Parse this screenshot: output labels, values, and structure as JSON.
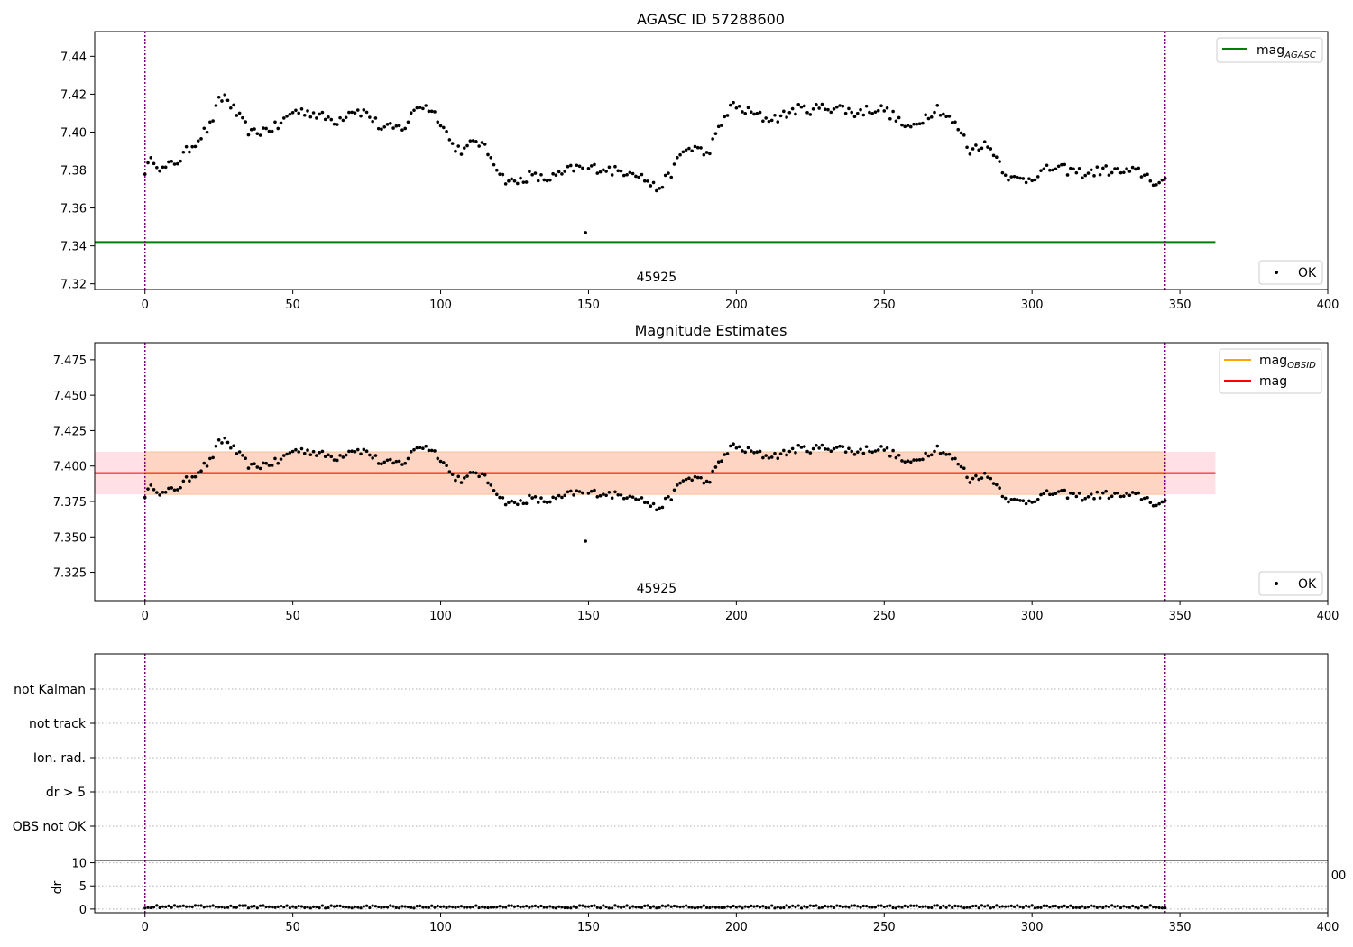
{
  "chart_data": [
    {
      "type": "scatter",
      "title": "AGASC ID 57288600",
      "xlim": [
        -17,
        400
      ],
      "ylim": [
        7.317,
        7.453
      ],
      "x_ticks": [
        0,
        50,
        100,
        150,
        200,
        250,
        300,
        350,
        400
      ],
      "y_ticks": [
        7.32,
        7.34,
        7.36,
        7.38,
        7.4,
        7.42,
        7.44
      ],
      "y_tick_labels": [
        "7.32",
        "7.34",
        "7.36",
        "7.38",
        "7.40",
        "7.42",
        "7.44"
      ],
      "y_decimals": 2,
      "obsid_label": "45925",
      "obsid_bounds": [
        0,
        345
      ],
      "lines": [
        {
          "name": "mag",
          "sub": "AGASC",
          "value": 7.342,
          "x_range": [
            -17,
            362
          ],
          "color": "#008000"
        }
      ],
      "series_name": "OK",
      "band": null,
      "legend_top": "top-right",
      "legend_bottom": "bottom-right"
    },
    {
      "type": "scatter",
      "title": "Magnitude Estimates",
      "xlim": [
        -17,
        400
      ],
      "ylim": [
        7.305,
        7.487
      ],
      "x_ticks": [
        0,
        50,
        100,
        150,
        200,
        250,
        300,
        350,
        400
      ],
      "y_ticks": [
        7.325,
        7.35,
        7.375,
        7.4,
        7.425,
        7.45,
        7.475
      ],
      "y_tick_labels": [
        "7.325",
        "7.350",
        "7.375",
        "7.400",
        "7.425",
        "7.450",
        "7.475"
      ],
      "y_decimals": 3,
      "obsid_label": "45925",
      "obsid_bounds": [
        0,
        345
      ],
      "lines": [
        {
          "name": "mag",
          "sub": "OBSID",
          "value": 7.395,
          "x_range": [
            0,
            345
          ],
          "color": "#ffa500"
        },
        {
          "name": "mag",
          "sub": "",
          "value": 7.395,
          "x_range": [
            -17,
            362
          ],
          "color": "#ff0000"
        }
      ],
      "series_name": "OK",
      "band": {
        "low": 7.38,
        "high": 7.41,
        "x_range": [
          -17,
          362
        ],
        "outer_color": "#ffe0e6",
        "inner_color": "#fdd5c2",
        "inner_x_range": [
          0,
          345
        ]
      },
      "legend_top": "top-right",
      "legend_bottom": "bottom-right"
    },
    {
      "type": "table",
      "flag_categories": [
        "OBS not OK",
        "dr > 5",
        "Ion. rad.",
        "not track",
        "not Kalman"
      ],
      "xlim": [
        -17,
        400
      ],
      "x_ticks": [
        0,
        50,
        100,
        150,
        200,
        250,
        300,
        350,
        400
      ],
      "overflow_tick_fragment": "00",
      "obsid_bounds": [
        0,
        345
      ]
    },
    {
      "type": "scatter",
      "ylabel": "dr",
      "xlim": [
        -17,
        400
      ],
      "ylim": [
        -0.8,
        10.5
      ],
      "x_ticks": [
        0,
        50,
        100,
        150,
        200,
        250,
        300,
        350,
        400
      ],
      "y_ticks": [
        0,
        5,
        10
      ],
      "obsid_bounds": [
        0,
        345
      ]
    }
  ],
  "style": {
    "point_color": "#000000",
    "obsid_line_color": "#800080",
    "grid_color": "#b0b0b0"
  }
}
